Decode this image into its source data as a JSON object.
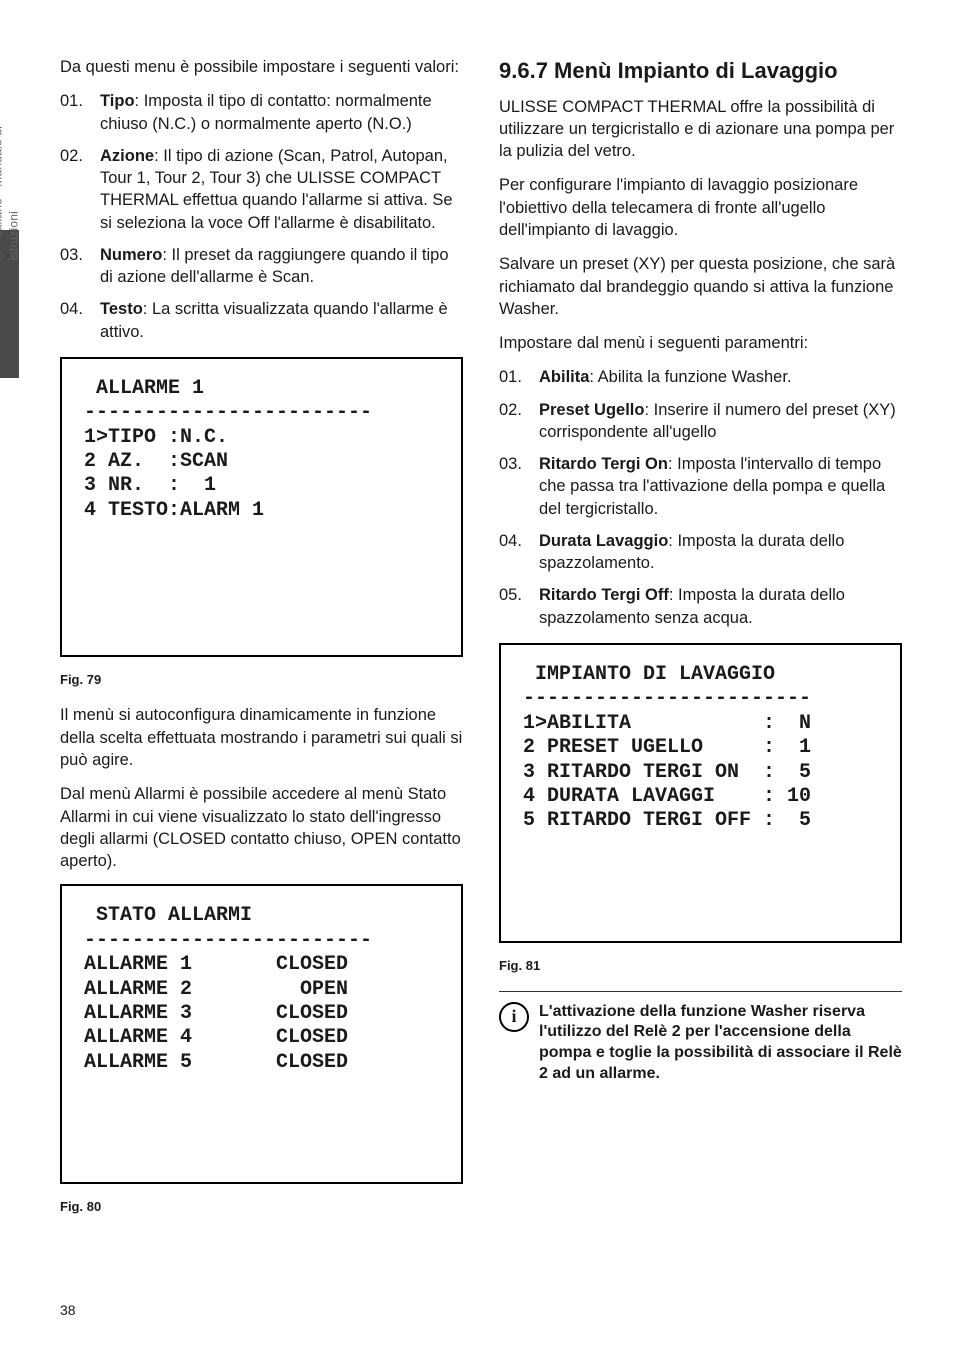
{
  "sideTab": "IT - Italiano - Manuale di istruzioni",
  "left": {
    "intro": "Da questi menu è possibile impostare i seguenti valori:",
    "items": [
      {
        "n": "01.",
        "term": "Tipo",
        "body": ": Imposta il tipo di contatto: normalmente chiuso (N.C.) o normalmente aperto (N.O.)"
      },
      {
        "n": "02.",
        "term": "Azione",
        "body": ": Il tipo di azione (Scan, Patrol, Autopan, Tour 1, Tour 2, Tour 3) che ULISSE COMPACT THERMAL effettua quando l'allarme si attiva. Se si seleziona la voce Off l'allarme è disabilitato."
      },
      {
        "n": "03.",
        "term": "Numero",
        "body": ": Il preset da raggiungere quando il tipo di azione dell'allarme è Scan."
      },
      {
        "n": "04.",
        "term": "Testo",
        "body": ": La scritta visualizzata quando l'allarme è attivo."
      }
    ],
    "lcd1": {
      "title": " ALLARME 1",
      "rule": "------------------------",
      "lines": [
        "1>TIPO :N.C.",
        "2 AZ.  :SCAN",
        "3 NR.  :  1",
        "4 TESTO:ALARM 1"
      ]
    },
    "fig1": "Fig. 79",
    "para1": "Il menù si autoconfigura dinamicamente in funzione della scelta effettuata mostrando i parametri sui quali si può agire.",
    "para2": "Dal menù Allarmi è possibile accedere al menù Stato Allarmi in cui viene visualizzato lo stato dell'ingresso degli allarmi (CLOSED contatto chiuso, OPEN contatto aperto).",
    "lcd2": {
      "title": " STATO ALLARMI",
      "rule": "------------------------",
      "lines": [
        "ALLARME 1       CLOSED",
        "ALLARME 2         OPEN",
        "ALLARME 3       CLOSED",
        "ALLARME 4       CLOSED",
        "ALLARME 5       CLOSED"
      ]
    },
    "fig2": "Fig. 80"
  },
  "right": {
    "heading": "9.6.7  Menù Impianto di Lavaggio",
    "p1": "ULISSE COMPACT THERMAL offre la possibilità di utilizzare un tergicristallo e di azionare una pompa per la pulizia del vetro.",
    "p2": "Per configurare l'impianto di lavaggio posizionare l'obiettivo della telecamera di fronte all'ugello dell'impianto di lavaggio.",
    "p3": "Salvare un preset (XY) per questa posizione, che sarà richiamato dal brandeggio quando si attiva la funzione Washer.",
    "p4": "Impostare dal menù i seguenti paramentri:",
    "items": [
      {
        "n": "01.",
        "term": "Abilita",
        "body": ": Abilita la funzione Washer."
      },
      {
        "n": "02.",
        "term": "Preset Ugello",
        "body": ": Inserire il numero del preset (XY) corrispondente all'ugello"
      },
      {
        "n": "03.",
        "term": "Ritardo Tergi On",
        "body": ": Imposta l'intervallo di tempo che passa tra l'attivazione della pompa e quella del tergicristallo."
      },
      {
        "n": "04.",
        "term": "Durata Lavaggio",
        "body": ": Imposta la durata dello spazzolamento."
      },
      {
        "n": "05.",
        "term": "Ritardo Tergi Off",
        "body": ": Imposta la durata dello spazzolamento senza acqua."
      }
    ],
    "lcd": {
      "title": " IMPIANTO DI LAVAGGIO",
      "rule": "------------------------",
      "lines": [
        "1>ABILITA           :  N",
        "2 PRESET UGELLO     :  1",
        "3 RITARDO TERGI ON  :  5",
        "4 DURATA LAVAGGI    : 10",
        "5 RITARDO TERGI OFF :  5"
      ]
    },
    "fig": "Fig. 81",
    "note": "L'attivazione della funzione Washer riserva l'utilizzo del Relè 2 per l'accensione della pompa e toglie la possibilità di associare il Relè 2 ad un allarme."
  },
  "pageNumber": "38"
}
